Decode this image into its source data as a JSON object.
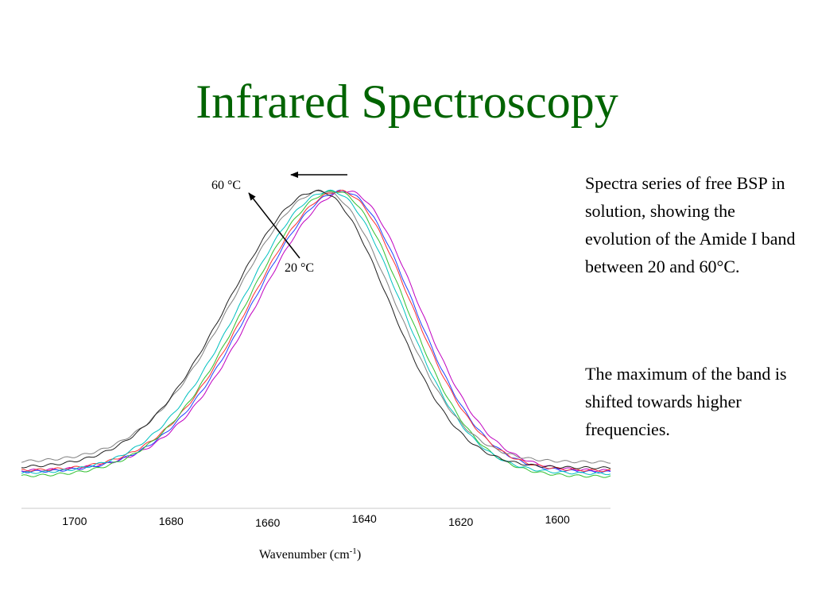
{
  "slide": {
    "title": "Infrared Spectroscopy",
    "paragraphs": [
      "Spectra series of free BSP in solution, showing the evolution of the Amide I band between 20 and 60°C.",
      "The maximum of the band is shifted towards higher frequencies."
    ]
  },
  "chart_data": {
    "type": "line",
    "xlabel": "Wavenumber (cm",
    "xlabel_sup": "-1",
    "xlabel_end": ")",
    "x_ticks": [
      1700,
      1680,
      1660,
      1640,
      1620,
      1600
    ],
    "xlim": [
      1711,
      1589
    ],
    "x_reversed": true,
    "ylim": [
      0,
      1
    ],
    "grid": false,
    "legend": "none",
    "annotations": {
      "label_high": "60 °C",
      "label_low": "20 °C",
      "shift_arrow": "toward higher wavenumber"
    },
    "series": [
      {
        "color": "#c000c0",
        "peak": 1643.5,
        "y0": 0.02,
        "values_desc": "20 °C"
      },
      {
        "color": "#2040ff",
        "peak": 1644.5,
        "y0": 0.015,
        "values_desc": ""
      },
      {
        "color": "#ff3030",
        "peak": 1645.0,
        "y0": 0.02,
        "values_desc": ""
      },
      {
        "color": "#30c030",
        "peak": 1646.0,
        "y0": 0.0,
        "values_desc": ""
      },
      {
        "color": "#00c0c0",
        "peak": 1647.0,
        "y0": 0.01,
        "values_desc": ""
      },
      {
        "color": "#808080",
        "peak": 1648.5,
        "y0": 0.05,
        "values_desc": ""
      },
      {
        "color": "#202020",
        "peak": 1649.5,
        "y0": 0.03,
        "values_desc": "60 °C"
      }
    ]
  }
}
